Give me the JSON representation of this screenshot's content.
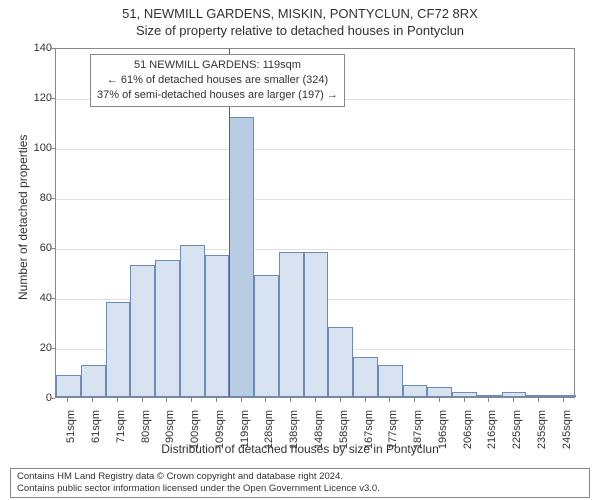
{
  "title": {
    "address": "51, NEWMILL GARDENS, MISKIN, PONTYCLUN, CF72 8RX",
    "subtitle": "Size of property relative to detached houses in Pontyclun"
  },
  "chart": {
    "type": "histogram",
    "ylabel": "Number of detached properties",
    "xlabel": "Distribution of detached houses by size in Pontyclun",
    "ylim": [
      0,
      140
    ],
    "ytick_step": 20,
    "background_color": "#ffffff",
    "grid_color": "#e0e0e0",
    "axis_color": "#888888",
    "bar_fill": "#d8e2f0",
    "bar_border": "#6b8bb8",
    "highlight_fill": "#b8cce4",
    "marker_color": "#cc3333",
    "marker_index": 7,
    "categories": [
      "51sqm",
      "61sqm",
      "71sqm",
      "80sqm",
      "90sqm",
      "100sqm",
      "109sqm",
      "119sqm",
      "128sqm",
      "138sqm",
      "148sqm",
      "158sqm",
      "167sqm",
      "177sqm",
      "187sqm",
      "196sqm",
      "206sqm",
      "216sqm",
      "225sqm",
      "235sqm",
      "245sqm"
    ],
    "values": [
      9,
      13,
      38,
      53,
      55,
      61,
      57,
      112,
      49,
      58,
      58,
      28,
      16,
      13,
      5,
      4,
      2,
      1,
      2,
      1,
      1
    ]
  },
  "info_box": {
    "line1": "51 NEWMILL GARDENS: 119sqm",
    "line2": "← 61% of detached houses are smaller (324)",
    "line3": "37% of semi-detached houses are larger (197) →"
  },
  "footer": {
    "line1": "Contains HM Land Registry data © Crown copyright and database right 2024.",
    "line2": "Contains public sector information licensed under the Open Government Licence v3.0."
  }
}
